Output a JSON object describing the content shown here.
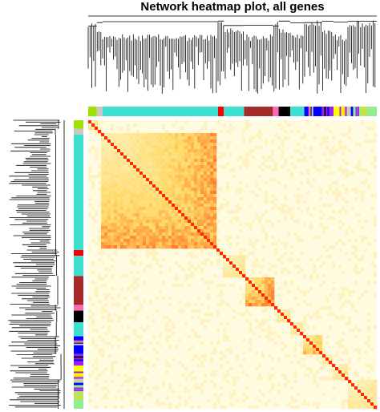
{
  "chart_data": {
    "type": "heatmap",
    "title": "Network heatmap plot, all genes",
    "xlabel": "",
    "ylabel": "",
    "dendrograms": [
      "top",
      "left"
    ],
    "module_color_bars": [
      "top",
      "left"
    ],
    "palette": {
      "background": "#ffffff",
      "low": "#fffbe0",
      "mid": "#ffd966",
      "high": "#ff2a00"
    },
    "modules": [
      {
        "color": "#a0e000",
        "fraction": 0.03
      },
      {
        "color": "#c8c8c8",
        "fraction": 0.02
      },
      {
        "color": "#40e0d0",
        "fraction": 0.4
      },
      {
        "color": "#ff0000",
        "fraction": 0.02
      },
      {
        "color": "#40e0d0",
        "fraction": 0.07
      },
      {
        "color": "#a52a2a",
        "fraction": 0.1
      },
      {
        "color": "#ff69b4",
        "fraction": 0.02
      },
      {
        "color": "#000000",
        "fraction": 0.04
      },
      {
        "color": "#40e0d0",
        "fraction": 0.05
      },
      {
        "color": "#0000ff",
        "fraction": 0.06
      },
      {
        "color": "#a020f0",
        "fraction": 0.04
      },
      {
        "color": "#ffff00",
        "fraction": 0.05
      },
      {
        "color": "#90ee90",
        "fraction": 0.1
      }
    ],
    "block_intensity": [
      {
        "module": 2,
        "value": 0.78
      },
      {
        "module": 5,
        "value": 0.82
      },
      {
        "module": 9,
        "value": 0.7
      }
    ]
  }
}
